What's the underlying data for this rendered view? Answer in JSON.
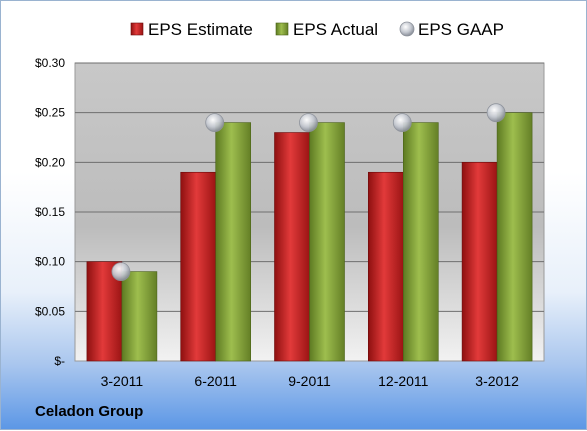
{
  "chart_data": {
    "type": "bar",
    "categories": [
      "3-2011",
      "6-2011",
      "9-2011",
      "12-2011",
      "3-2012"
    ],
    "series": [
      {
        "name": "EPS Estimate",
        "kind": "bar",
        "color": "#cc2222",
        "values": [
          0.1,
          0.19,
          0.23,
          0.19,
          0.2
        ]
      },
      {
        "name": "EPS Actual",
        "kind": "bar",
        "color": "#8fac3c",
        "values": [
          0.09,
          0.24,
          0.24,
          0.24,
          0.25
        ]
      },
      {
        "name": "EPS GAAP",
        "kind": "marker",
        "color": "#b8bcc4",
        "values": [
          0.09,
          0.24,
          0.24,
          0.24,
          0.25
        ]
      }
    ],
    "y_ticks": [
      "$-",
      "$0.05",
      "$0.10",
      "$0.15",
      "$0.20",
      "$0.25",
      "$0.30"
    ],
    "ylim": [
      0,
      0.3
    ],
    "grid": true,
    "legend_position": "top"
  },
  "footer": {
    "company": "Celadon Group"
  }
}
